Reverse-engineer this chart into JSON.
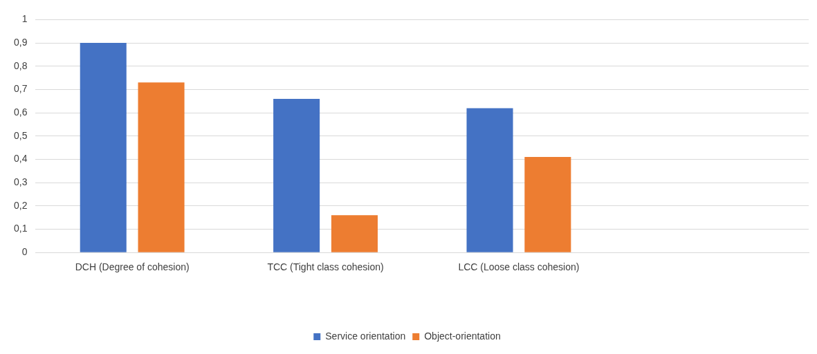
{
  "chart_data": {
    "type": "bar",
    "categories": [
      "DCH (Degree of cohesion)",
      "TCC (Tight class cohesion)",
      "LCC (Loose class cohesion)",
      null
    ],
    "series": [
      {
        "name": "Service orientation",
        "color": "#4472c4",
        "values": [
          0.9,
          0.66,
          0.62,
          null
        ]
      },
      {
        "name": "Object-orientation",
        "color": "#ed7d31",
        "values": [
          0.73,
          0.16,
          0.41,
          null
        ]
      }
    ],
    "ylim": [
      0,
      1
    ],
    "yticks": [
      {
        "value": 0,
        "label": "0"
      },
      {
        "value": 0.1,
        "label": "0,1"
      },
      {
        "value": 0.2,
        "label": "0,2"
      },
      {
        "value": 0.3,
        "label": "0,3"
      },
      {
        "value": 0.4,
        "label": "0,4"
      },
      {
        "value": 0.5,
        "label": "0,5"
      },
      {
        "value": 0.6,
        "label": "0,6"
      },
      {
        "value": 0.7,
        "label": "0,7"
      },
      {
        "value": 0.8,
        "label": "0,8"
      },
      {
        "value": 0.9,
        "label": "0,9"
      },
      {
        "value": 1,
        "label": "1"
      }
    ],
    "grid": "y",
    "legend": "bottom"
  }
}
